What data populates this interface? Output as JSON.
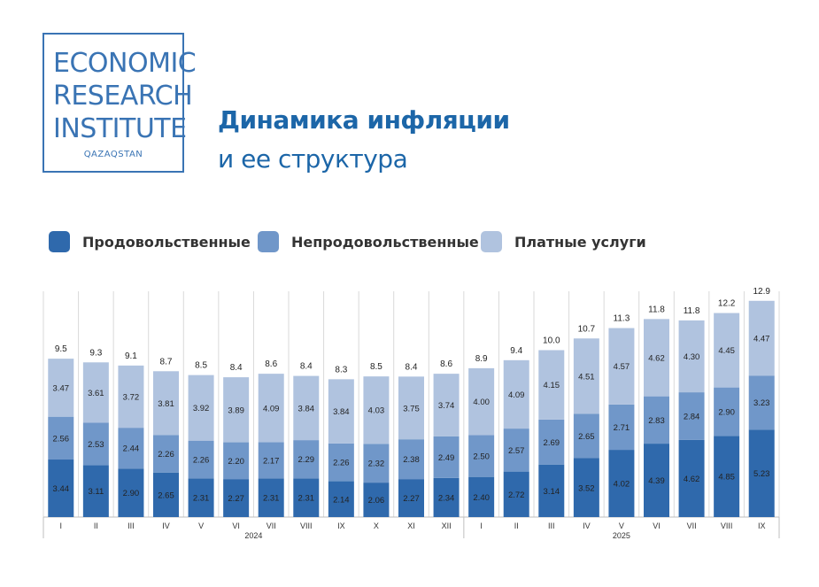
{
  "logo": {
    "line1": "ECONOMIC",
    "line2": "RESEARCH",
    "line3": "INSTITUTE",
    "sub": "QAZAQSTAN"
  },
  "title": {
    "main": "Динамика инфляции",
    "sub": "и ее структура"
  },
  "colors": {
    "food": "#2f69ac",
    "nonfood": "#7097c9",
    "services": "#b0c3df",
    "title": "#1c66a8"
  },
  "chart_data": {
    "type": "bar",
    "stacked": true,
    "categories": [
      "I",
      "II",
      "III",
      "IV",
      "V",
      "VI",
      "VII",
      "VIII",
      "IX",
      "X",
      "XI",
      "XII",
      "I",
      "II",
      "III",
      "IV",
      "V",
      "VI",
      "VII",
      "VIII",
      "IX"
    ],
    "year_labels": [
      {
        "label": "2024",
        "from": 0,
        "to": 11
      },
      {
        "label": "2025",
        "from": 12,
        "to": 20
      }
    ],
    "series": [
      {
        "name": "Продовольственные",
        "key": "food",
        "values": [
          3.44,
          3.11,
          2.9,
          2.65,
          2.31,
          2.27,
          2.31,
          2.31,
          2.14,
          2.06,
          2.27,
          2.34,
          2.4,
          2.72,
          3.14,
          3.52,
          4.02,
          4.39,
          4.62,
          4.85,
          5.23
        ]
      },
      {
        "name": "Непродовольственные",
        "key": "nonfood",
        "values": [
          2.56,
          2.53,
          2.44,
          2.26,
          2.26,
          2.2,
          2.17,
          2.29,
          2.26,
          2.32,
          2.38,
          2.49,
          2.5,
          2.57,
          2.69,
          2.65,
          2.71,
          2.83,
          2.84,
          2.9,
          3.23
        ]
      },
      {
        "name": "Платные услуги",
        "key": "services",
        "values": [
          3.47,
          3.61,
          3.72,
          3.81,
          3.92,
          3.89,
          4.09,
          3.84,
          3.84,
          4.03,
          3.75,
          3.74,
          4.0,
          4.09,
          4.15,
          4.51,
          4.57,
          4.62,
          4.3,
          4.45,
          4.47
        ]
      }
    ],
    "totals": [
      "9.5",
      "9.3",
      "9.1",
      "8.7",
      "8.5",
      "8.4",
      "8.6",
      "8.4",
      "8.3",
      "8.5",
      "8.4",
      "8.6",
      "8.9",
      "9.4",
      "10.0",
      "10.7",
      "11.3",
      "11.8",
      "11.8",
      "12.2",
      "12.9"
    ],
    "ylim": [
      0,
      13.5
    ],
    "legend_position": "top"
  }
}
